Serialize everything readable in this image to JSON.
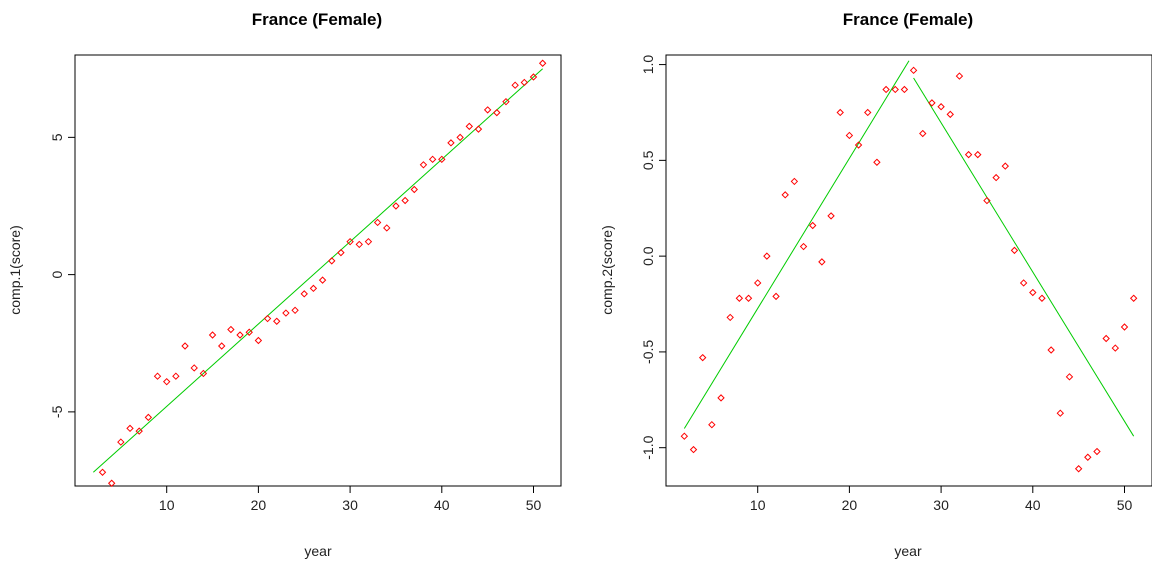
{
  "colors": {
    "points": "#ff0000",
    "fit": "#00cc00",
    "axes": "#000000"
  },
  "chart_data": [
    {
      "type": "scatter",
      "title": "France (Female)",
      "xlabel": "year",
      "ylabel": "comp.1(score)",
      "xlim": [
        0,
        53
      ],
      "ylim": [
        -7.7,
        8.0
      ],
      "xticks": [
        10,
        20,
        30,
        40,
        50
      ],
      "yticks": [
        -5,
        0,
        5
      ],
      "ytick_labels": [
        "-5",
        "0",
        "5"
      ],
      "marker": "diamond",
      "points": {
        "x": [
          3,
          4,
          5,
          6,
          7,
          8,
          9,
          10,
          11,
          12,
          13,
          14,
          15,
          16,
          17,
          18,
          19,
          20,
          21,
          22,
          23,
          24,
          25,
          26,
          27,
          28,
          29,
          30,
          31,
          32,
          33,
          34,
          35,
          36,
          37,
          38,
          39,
          40,
          41,
          42,
          43,
          44,
          45,
          46,
          47,
          48,
          49,
          50,
          51
        ],
        "y": [
          -7.2,
          -7.6,
          -6.1,
          -5.6,
          -5.7,
          -5.2,
          -3.7,
          -3.9,
          -3.7,
          -2.6,
          -3.4,
          -3.6,
          -2.2,
          -2.6,
          -2.0,
          -2.2,
          -2.1,
          -2.4,
          -1.6,
          -1.7,
          -1.4,
          -1.3,
          -0.7,
          -0.5,
          -0.2,
          0.5,
          0.8,
          1.2,
          1.1,
          1.2,
          1.9,
          1.7,
          2.5,
          2.7,
          3.1,
          4.0,
          4.2,
          4.2,
          4.8,
          5.0,
          5.4,
          5.3,
          6.0,
          5.9,
          6.3,
          6.9,
          7.0,
          7.2,
          7.7
        ]
      },
      "fit_segments": [
        {
          "x": [
            2,
            51
          ],
          "y": [
            -7.2,
            7.5
          ]
        }
      ]
    },
    {
      "type": "scatter",
      "title": "France (Female)",
      "xlabel": "year",
      "ylabel": "comp.2(score)",
      "xlim": [
        0,
        53
      ],
      "ylim": [
        -1.2,
        1.05
      ],
      "xticks": [
        10,
        20,
        30,
        40,
        50
      ],
      "yticks": [
        -1.0,
        -0.5,
        0.0,
        0.5,
        1.0
      ],
      "ytick_labels": [
        "-1.0",
        "-0.5",
        "0.0",
        "0.5",
        "1.0"
      ],
      "marker": "diamond",
      "points": {
        "x": [
          2,
          3,
          4,
          5,
          6,
          7,
          8,
          9,
          10,
          11,
          12,
          13,
          14,
          15,
          16,
          17,
          18,
          19,
          20,
          21,
          22,
          23,
          24,
          25,
          26,
          27,
          28,
          29,
          30,
          31,
          32,
          33,
          34,
          35,
          36,
          37,
          38,
          39,
          40,
          41,
          42,
          43,
          44,
          45,
          46,
          47,
          48,
          49,
          50,
          51
        ],
        "y": [
          -0.94,
          -1.01,
          -0.53,
          -0.88,
          -0.74,
          -0.32,
          -0.22,
          -0.22,
          -0.14,
          0.0,
          -0.21,
          0.32,
          0.39,
          0.05,
          0.16,
          -0.03,
          0.21,
          0.75,
          0.63,
          0.58,
          0.75,
          0.49,
          0.87,
          0.87,
          0.87,
          0.97,
          0.64,
          0.8,
          0.78,
          0.74,
          0.94,
          0.53,
          0.53,
          0.29,
          0.41,
          0.47,
          0.03,
          -0.14,
          -0.19,
          -0.22,
          -0.49,
          -0.82,
          -0.63,
          -1.11,
          -1.05,
          -1.02,
          -0.43,
          -0.48,
          -0.37,
          -0.22
        ]
      },
      "fit_segments": [
        {
          "x": [
            2,
            26.5
          ],
          "y": [
            -0.9,
            1.02
          ]
        },
        {
          "x": [
            27,
            51
          ],
          "y": [
            0.93,
            -0.94
          ]
        }
      ]
    }
  ]
}
